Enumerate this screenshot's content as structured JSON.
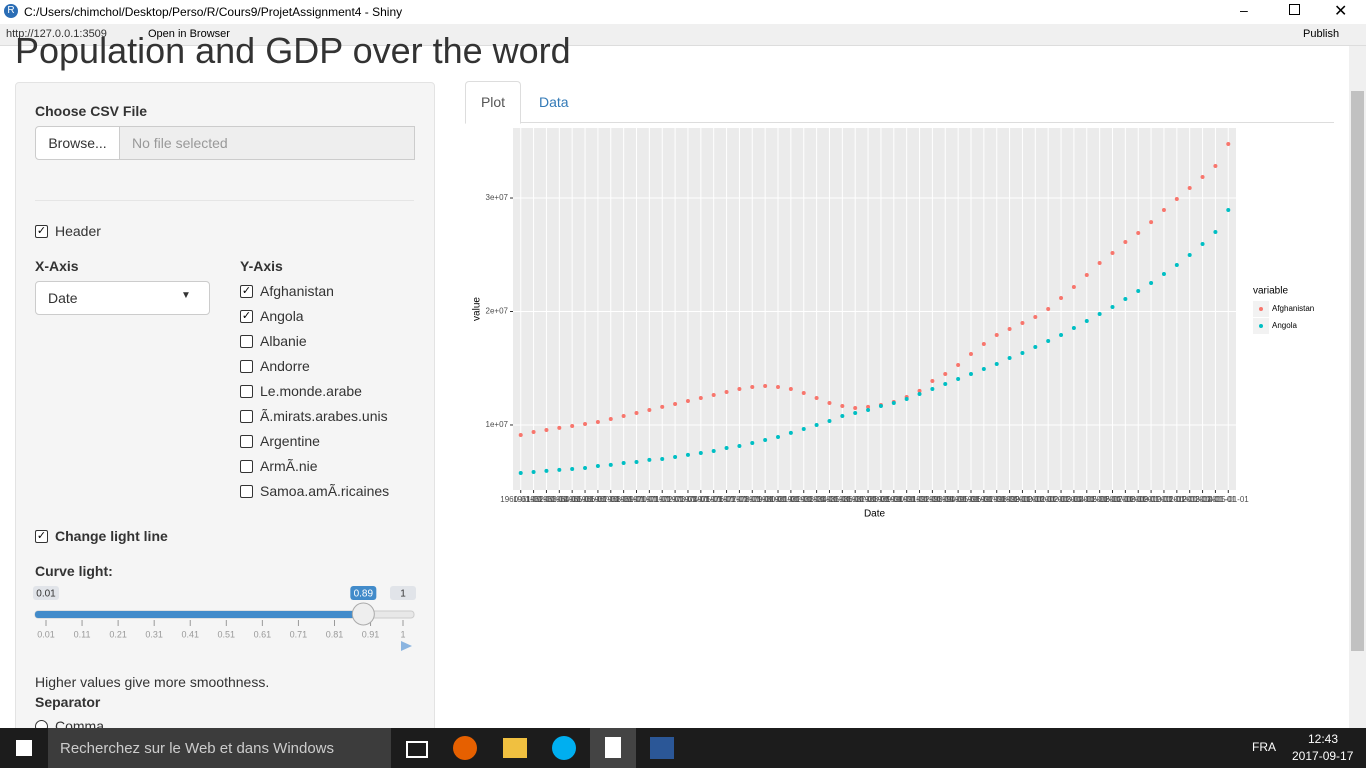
{
  "window": {
    "title": "C:/Users/chimchol/Desktop/Perso/R/Cours9/ProjetAssignment4 - Shiny",
    "url": "http://127.0.0.1:3509",
    "open_in_browser": "Open in Browser",
    "publish": "Publish"
  },
  "page": {
    "title": "Population and GDP over the word"
  },
  "sidebar": {
    "file_label": "Choose CSV File",
    "browse": "Browse...",
    "no_file": "No file selected",
    "header": {
      "label": "Header",
      "checked": true
    },
    "x_axis": {
      "label": "X-Axis",
      "value": "Date"
    },
    "y_axis": {
      "label": "Y-Axis",
      "options": [
        {
          "label": "Afghanistan",
          "checked": true
        },
        {
          "label": "Angola",
          "checked": true
        },
        {
          "label": "Albanie",
          "checked": false
        },
        {
          "label": "Andorre",
          "checked": false
        },
        {
          "label": "Le.monde.arabe",
          "checked": false
        },
        {
          "label": "Ã.mirats.arabes.unis",
          "checked": false
        },
        {
          "label": "Argentine",
          "checked": false
        },
        {
          "label": "ArmÃ.nie",
          "checked": false
        },
        {
          "label": "Samoa.amÃ.ricaines",
          "checked": false
        }
      ]
    },
    "change_light": {
      "label": "Change light line",
      "checked": true
    },
    "curve_light": {
      "label": "Curve light:",
      "min": 0.01,
      "max": 1,
      "value": 0.89,
      "ticks": [
        0.01,
        0.11,
        0.21,
        0.31,
        0.41,
        0.51,
        0.61,
        0.71,
        0.81,
        0.91,
        1
      ]
    },
    "help": "Higher values give more smoothness.",
    "separator": "Separator",
    "comma": "Comma"
  },
  "tabs": [
    "Plot",
    "Data"
  ],
  "chart_data": {
    "type": "scatter",
    "x_label": "Date",
    "y_label": "value",
    "legend_title": "variable",
    "categories": [
      "1960-01-01",
      "1961-01-01",
      "1962-01-01",
      "1963-01-01",
      "1964-01-01",
      "1965-01-01",
      "1966-01-01",
      "1967-01-01",
      "1968-01-01",
      "1969-01-01",
      "1970-01-01",
      "1971-01-01",
      "1972-01-01",
      "1973-01-01",
      "1974-01-01",
      "1975-01-01",
      "1976-01-01",
      "1977-01-01",
      "1978-01-01",
      "1979-01-01",
      "1980-01-01",
      "1981-01-01",
      "1982-01-01",
      "1983-01-01",
      "1984-01-01",
      "1985-01-01",
      "1986-01-01",
      "1987-01-01",
      "1988-01-01",
      "1989-01-01",
      "1990-01-01",
      "1991-01-01",
      "1992-01-01",
      "1993-01-01",
      "1994-01-01",
      "1995-01-01",
      "1996-01-01",
      "1997-01-01",
      "1998-01-01",
      "1999-01-01",
      "2000-01-01",
      "2001-01-01",
      "2002-01-01",
      "2003-01-01",
      "2004-01-01",
      "2005-01-01",
      "2006-01-01",
      "2007-01-01",
      "2008-01-01",
      "2009-01-01",
      "2010-01-01",
      "2011-01-01",
      "2012-01-01",
      "2013-01-01",
      "2014-01-01",
      "2015-01-01"
    ],
    "series": [
      {
        "name": "Afghanistan",
        "color": "#F8766D",
        "values": [
          9120000,
          9380000,
          9560000,
          9740000,
          9910000,
          10090000,
          10260000,
          10530000,
          10790000,
          11060000,
          11320000,
          11590000,
          11850000,
          12110000,
          12380000,
          12640000,
          12910000,
          13170000,
          13350000,
          13440000,
          13350000,
          13170000,
          12820000,
          12380000,
          11940000,
          11670000,
          11500000,
          11590000,
          11760000,
          12030000,
          12470000,
          13000000,
          13880000,
          14490000,
          15290000,
          16260000,
          17140000,
          17930000,
          18460000,
          18990000,
          19510000,
          20220000,
          21190000,
          22160000,
          23220000,
          24270000,
          25150000,
          26120000,
          26920000,
          27880000,
          28940000,
          29910000,
          30880000,
          31850000,
          32820000,
          34760000
        ]
      },
      {
        "name": "Angola",
        "color": "#00BFC4",
        "values": [
          5770000,
          5860000,
          5950000,
          6040000,
          6120000,
          6210000,
          6390000,
          6480000,
          6650000,
          6740000,
          6920000,
          7000000,
          7180000,
          7360000,
          7530000,
          7710000,
          7970000,
          8150000,
          8410000,
          8680000,
          8940000,
          9300000,
          9650000,
          10000000,
          10350000,
          10790000,
          11060000,
          11320000,
          11670000,
          11940000,
          12290000,
          12730000,
          13170000,
          13610000,
          14050000,
          14490000,
          14930000,
          15370000,
          15900000,
          16340000,
          16870000,
          17400000,
          17930000,
          18550000,
          19160000,
          19780000,
          20400000,
          21100000,
          21810000,
          22510000,
          23300000,
          24100000,
          24980000,
          25950000,
          27000000,
          28940000
        ]
      }
    ],
    "ylim": [
      4270000,
      36170000
    ],
    "yticks": [
      {
        "value": 10000000,
        "label": "1e+07"
      },
      {
        "value": 20000000,
        "label": "2e+07"
      },
      {
        "value": 30000000,
        "label": "3e+07"
      }
    ],
    "grid": true,
    "legend": "right"
  },
  "taskbar": {
    "search": "Recherchez sur le Web et dans Windows",
    "lang": "FRA",
    "time": "12:43",
    "date": "2017-09-17"
  }
}
